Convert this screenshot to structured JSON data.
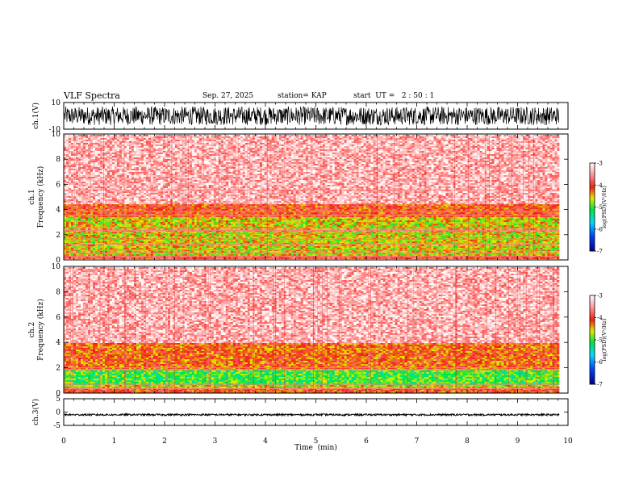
{
  "header": {
    "title": "VLF Spectra",
    "date": "Sep. 27, 2025",
    "station": "station= KAP",
    "start": "start  UT =   2 : 50 : 1"
  },
  "chart_data": [
    {
      "type": "line",
      "id": "ch1-waveform",
      "ylabel": "ch.1(V)",
      "ylim": [
        -10,
        10
      ],
      "yticks": [
        10,
        -10
      ],
      "xlim": [
        0,
        10
      ],
      "data_x_max": 9.83,
      "note": "dense black noise waveform, amplitude ~ +/-7 V"
    },
    {
      "type": "heatmap",
      "id": "ch1-spectrogram",
      "ylabel": "ch.1 Frequency (kHz)",
      "ylim": [
        0,
        10
      ],
      "yticks": [
        0,
        2,
        4,
        6,
        8,
        10
      ],
      "xlim": [
        0,
        10
      ],
      "data_x_max": 9.83,
      "colorbar": {
        "label": "log(PSD)(V²/Hz)",
        "range": [
          -7,
          -3
        ],
        "ticks": [
          -3,
          -4,
          -5,
          -6,
          -7
        ]
      },
      "bands": [
        {
          "f_low": 0.0,
          "f_high": 0.4,
          "level": -4.0
        },
        {
          "f_low": 1.0,
          "f_high": 3.5,
          "level": -4.6
        },
        {
          "f_low": 3.5,
          "f_high": 4.5,
          "level": -4.1
        },
        {
          "f_low": 4.5,
          "f_high": 10.0,
          "level": -3.4
        }
      ],
      "lines_khz": [
        0.3,
        0.55,
        0.8,
        1.25,
        1.65,
        2.1,
        2.35,
        2.55,
        3.55,
        3.85,
        5.55
      ]
    },
    {
      "type": "heatmap",
      "id": "ch2-spectrogram",
      "ylabel": "ch.2 Frequency (kHz)",
      "ylim": [
        0,
        10
      ],
      "yticks": [
        0,
        2,
        4,
        6,
        8,
        10
      ],
      "xlim": [
        0,
        10
      ],
      "data_x_max": 9.83,
      "colorbar": {
        "label": "log(PSD)(V²/Hz)",
        "range": [
          -7,
          -3
        ],
        "ticks": [
          -3,
          -4,
          -5,
          -6,
          -7
        ]
      },
      "bands": [
        {
          "f_low": 0.0,
          "f_high": 0.5,
          "level": -4.1
        },
        {
          "f_low": 0.7,
          "f_high": 2.0,
          "level": -5.0
        },
        {
          "f_low": 2.0,
          "f_high": 4.0,
          "level": -4.2
        },
        {
          "f_low": 4.0,
          "f_high": 10.0,
          "level": -3.4
        }
      ],
      "lines_khz": [
        0.35,
        0.7,
        1.85,
        2.0
      ]
    },
    {
      "type": "line",
      "id": "ch3-waveform",
      "ylabel": "ch.3(V)",
      "ylim": [
        -5,
        5
      ],
      "yticks": [
        5,
        0,
        -5
      ],
      "xlim": [
        0,
        10
      ],
      "data_x_max": 9.83,
      "note": "near-constant thick black trace at about -1 V"
    }
  ],
  "xaxis": {
    "label": "Time  (min)",
    "ticks": [
      "0",
      "1",
      "2",
      "3",
      "4",
      "5",
      "6",
      "7",
      "8",
      "9",
      "10"
    ]
  }
}
